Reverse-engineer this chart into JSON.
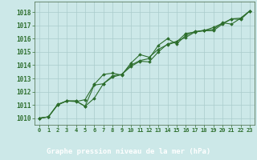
{
  "title": "Graphe pression niveau de la mer (hPa)",
  "bg_color": "#cce8e8",
  "plot_bg_color": "#cce8e8",
  "grid_color": "#aacccc",
  "line_color": "#2d6e2d",
  "marker_color": "#2d6e2d",
  "xlabel_bg": "#2d6e2d",
  "xlabel_fg": "#ffffff",
  "xlim": [
    -0.5,
    23.5
  ],
  "ylim": [
    1009.5,
    1018.8
  ],
  "yticks": [
    1010,
    1011,
    1012,
    1013,
    1014,
    1015,
    1016,
    1017,
    1018
  ],
  "xticks": [
    0,
    1,
    2,
    3,
    4,
    5,
    6,
    7,
    8,
    9,
    10,
    11,
    12,
    13,
    14,
    15,
    16,
    17,
    18,
    19,
    20,
    21,
    22,
    23
  ],
  "series1_x": [
    0,
    1,
    2,
    3,
    4,
    5,
    6,
    7,
    8,
    9,
    10,
    11,
    12,
    13,
    14,
    15,
    16,
    17,
    18,
    19,
    20,
    21,
    22,
    23
  ],
  "series1_y": [
    1010.0,
    1010.1,
    1011.0,
    1011.3,
    1011.3,
    1010.9,
    1011.5,
    1012.6,
    1013.2,
    1013.3,
    1013.9,
    1014.3,
    1014.25,
    1015.0,
    1015.6,
    1015.8,
    1016.1,
    1016.5,
    1016.6,
    1016.6,
    1017.1,
    1017.5,
    1017.45,
    1018.1
  ],
  "series2_x": [
    0,
    1,
    2,
    3,
    4,
    5,
    6,
    7,
    8,
    9,
    10,
    11,
    12,
    13,
    14,
    15,
    16,
    17,
    18,
    19,
    20,
    21,
    22,
    23
  ],
  "series2_y": [
    1010.0,
    1010.1,
    1011.0,
    1011.3,
    1011.3,
    1010.9,
    1012.5,
    1012.6,
    1013.1,
    1013.3,
    1014.0,
    1014.35,
    1014.5,
    1015.5,
    1016.0,
    1015.6,
    1016.25,
    1016.55,
    1016.6,
    1016.85,
    1017.15,
    1017.5,
    1017.55,
    1018.1
  ],
  "series3_x": [
    0,
    1,
    2,
    3,
    4,
    5,
    6,
    7,
    8,
    9,
    10,
    11,
    12,
    13,
    14,
    15,
    16,
    17,
    18,
    19,
    20,
    21,
    22,
    23
  ],
  "series3_y": [
    1010.0,
    1010.1,
    1011.05,
    1011.3,
    1011.25,
    1011.4,
    1012.55,
    1013.3,
    1013.4,
    1013.25,
    1014.15,
    1014.8,
    1014.6,
    1015.2,
    1015.55,
    1015.75,
    1016.4,
    1016.5,
    1016.65,
    1016.7,
    1017.2,
    1017.1,
    1017.55,
    1018.1
  ],
  "figsize": [
    3.2,
    2.0
  ],
  "dpi": 100
}
